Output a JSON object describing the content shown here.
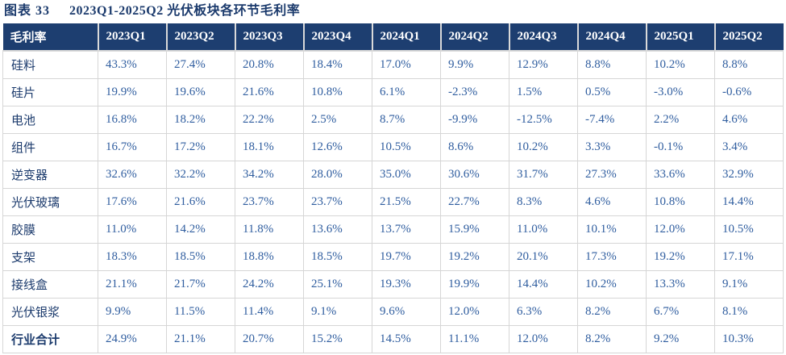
{
  "figure": {
    "label": "图表 33",
    "title": "2023Q1-2025Q2 光伏板块各环节毛利率"
  },
  "colors": {
    "header_bg": "#1d3e70",
    "header_text": "#ffffff",
    "title_text": "#1c3b6d",
    "row_label_text": "#1c3b6d",
    "value_text": "#2f5d9f",
    "border": "#d6d6d6"
  },
  "chart_data": {
    "type": "table",
    "title": "2023Q1-2025Q2 光伏板块各环节毛利率",
    "columns": [
      "毛利率",
      "2023Q1",
      "2023Q2",
      "2023Q3",
      "2023Q4",
      "2024Q1",
      "2024Q2",
      "2024Q3",
      "2024Q4",
      "2025Q1",
      "2025Q2"
    ],
    "rows": [
      {
        "label": "硅料",
        "bold": false,
        "values": [
          "43.3%",
          "27.4%",
          "20.8%",
          "18.4%",
          "17.0%",
          "9.9%",
          "12.9%",
          "8.8%",
          "10.2%",
          "8.8%"
        ]
      },
      {
        "label": "硅片",
        "bold": false,
        "values": [
          "19.9%",
          "19.6%",
          "21.6%",
          "10.8%",
          "6.1%",
          "-2.3%",
          "1.5%",
          "0.5%",
          "-3.0%",
          "-0.6%"
        ]
      },
      {
        "label": "电池",
        "bold": false,
        "values": [
          "16.8%",
          "18.2%",
          "22.2%",
          "2.5%",
          "8.7%",
          "-9.9%",
          "-12.5%",
          "-7.4%",
          "2.2%",
          "4.6%"
        ]
      },
      {
        "label": "组件",
        "bold": false,
        "values": [
          "16.7%",
          "17.2%",
          "18.1%",
          "12.6%",
          "10.5%",
          "8.6%",
          "10.2%",
          "3.3%",
          "-0.1%",
          "3.4%"
        ]
      },
      {
        "label": "逆变器",
        "bold": false,
        "values": [
          "32.6%",
          "32.2%",
          "34.2%",
          "28.0%",
          "35.0%",
          "30.6%",
          "31.7%",
          "27.3%",
          "33.6%",
          "32.9%"
        ]
      },
      {
        "label": "光伏玻璃",
        "bold": false,
        "values": [
          "17.6%",
          "21.6%",
          "23.7%",
          "23.7%",
          "21.5%",
          "22.7%",
          "8.3%",
          "4.6%",
          "10.8%",
          "14.4%"
        ]
      },
      {
        "label": "胶膜",
        "bold": false,
        "values": [
          "11.0%",
          "14.2%",
          "11.8%",
          "13.6%",
          "13.7%",
          "15.9%",
          "11.0%",
          "10.1%",
          "12.0%",
          "10.5%"
        ]
      },
      {
        "label": "支架",
        "bold": false,
        "values": [
          "18.3%",
          "18.5%",
          "18.8%",
          "18.5%",
          "19.7%",
          "19.2%",
          "20.1%",
          "17.3%",
          "19.2%",
          "17.1%"
        ]
      },
      {
        "label": "接线盒",
        "bold": false,
        "values": [
          "21.1%",
          "21.7%",
          "24.2%",
          "25.1%",
          "19.3%",
          "19.9%",
          "14.4%",
          "10.2%",
          "13.3%",
          "9.1%"
        ]
      },
      {
        "label": "光伏银浆",
        "bold": false,
        "values": [
          "9.9%",
          "11.5%",
          "11.4%",
          "9.1%",
          "9.6%",
          "12.0%",
          "6.3%",
          "8.2%",
          "6.7%",
          "8.1%"
        ]
      },
      {
        "label": "行业合计",
        "bold": true,
        "values": [
          "24.9%",
          "21.1%",
          "20.7%",
          "15.2%",
          "14.5%",
          "11.1%",
          "12.0%",
          "8.2%",
          "9.2%",
          "10.3%"
        ]
      }
    ]
  }
}
